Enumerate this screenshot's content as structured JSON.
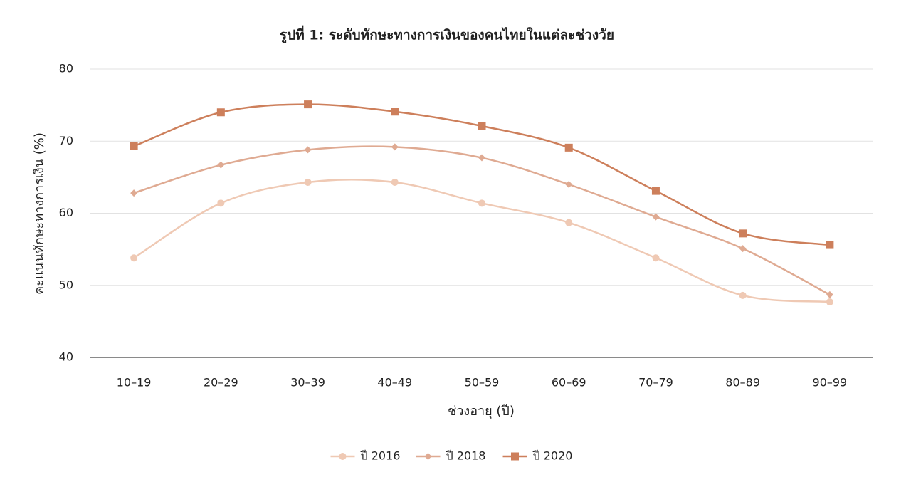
{
  "chart_data": {
    "type": "line",
    "title": "รูปที่ 1: ระดับทักษะทางการเงินของคนไทยในแต่ละช่วงวัย",
    "xlabel": "ช่วงอายุ (ปี)",
    "ylabel": "คะแนนทักษะทางการเงิน (%)",
    "categories": [
      "10–19",
      "20–29",
      "30–39",
      "40–49",
      "50–59",
      "60–69",
      "70–79",
      "80–89",
      "90–99"
    ],
    "series": [
      {
        "name": "ปี 2016",
        "color": "#efc9b4",
        "marker": "circle",
        "values": [
          53.8,
          61.4,
          64.3,
          64.3,
          61.4,
          58.7,
          53.8,
          48.6,
          47.7
        ]
      },
      {
        "name": "ปี 2018",
        "color": "#dfaa92",
        "marker": "diamond",
        "values": [
          62.8,
          66.7,
          68.8,
          69.2,
          67.7,
          64.0,
          59.5,
          55.1,
          48.7
        ]
      },
      {
        "name": "ปี 2020",
        "color": "#cd7f5b",
        "marker": "square",
        "values": [
          69.3,
          74.0,
          75.1,
          74.1,
          72.1,
          69.1,
          63.1,
          57.2,
          55.6
        ]
      }
    ],
    "ylim": [
      40,
      80
    ],
    "yticks": [
      40,
      50,
      60,
      70,
      80
    ],
    "grid": true,
    "legend": "bottom",
    "smooth": true
  }
}
